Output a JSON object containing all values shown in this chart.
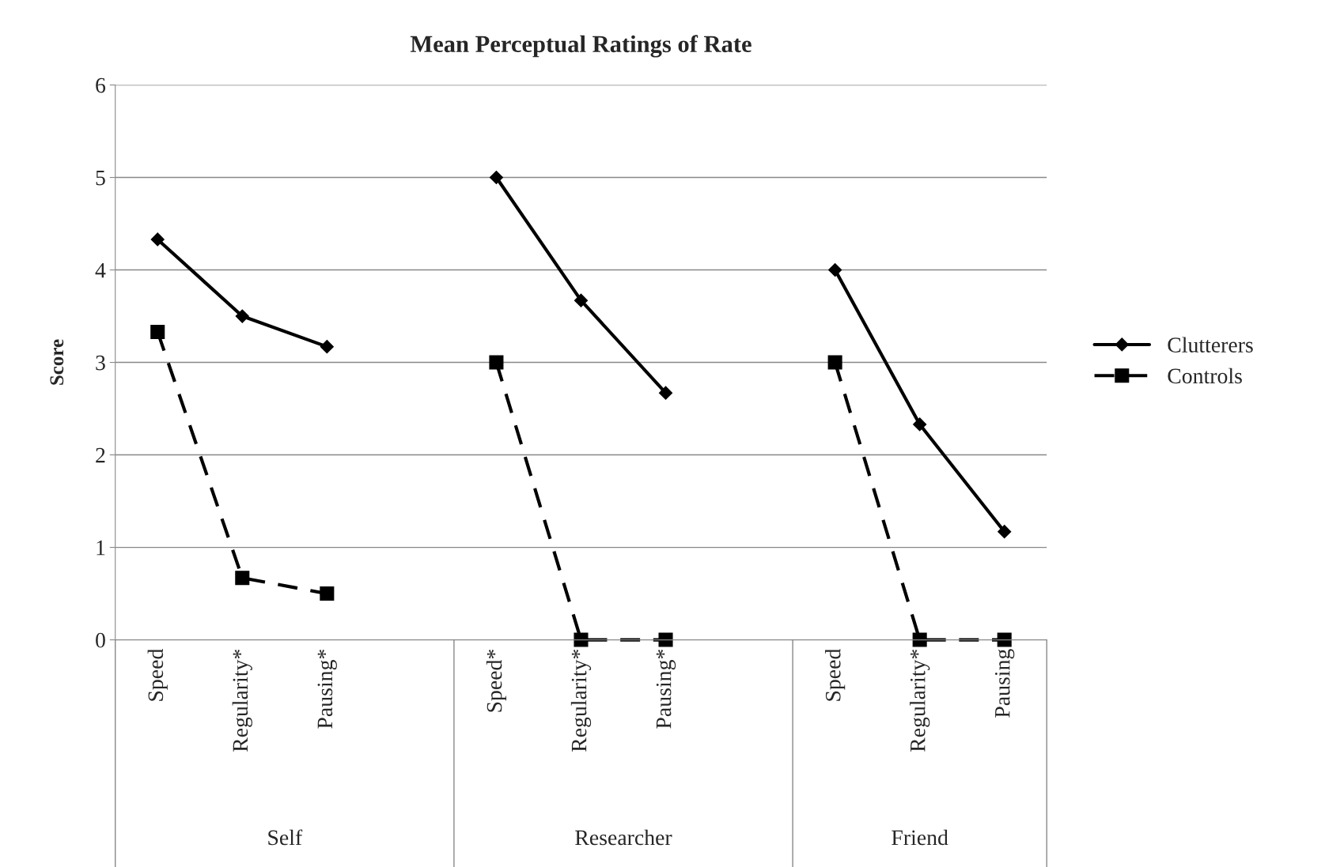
{
  "chart_data": {
    "type": "line",
    "title": "Mean Perceptual Ratings of Rate",
    "ylabel": "Score",
    "categories": [
      "Speed",
      "Regularity*",
      "Pausing*",
      null,
      "Speed*",
      "Regularity*",
      "Pausing*",
      null,
      "Speed",
      "Regularity*",
      "Pausing"
    ],
    "series": [
      {
        "name": "Clutterers",
        "color": "#000000",
        "marker": "diamond",
        "line_style": "solid",
        "values": [
          4.33,
          3.5,
          3.17,
          null,
          5,
          3.67,
          2.67,
          null,
          4,
          2.33,
          1.17
        ]
      },
      {
        "name": "Controls",
        "color": "#000000",
        "marker": "square",
        "line_style": "dashed",
        "values": [
          3.33,
          0.67,
          0.5,
          null,
          3,
          0,
          0,
          null,
          3,
          0,
          0
        ]
      }
    ],
    "annotations": [
      "Self",
      "Researcher",
      "Friend"
    ],
    "ylim": [
      0,
      6
    ],
    "yticks": [
      0,
      1,
      2,
      3,
      4,
      5,
      6
    ],
    "grid": "y",
    "legend": "right"
  }
}
